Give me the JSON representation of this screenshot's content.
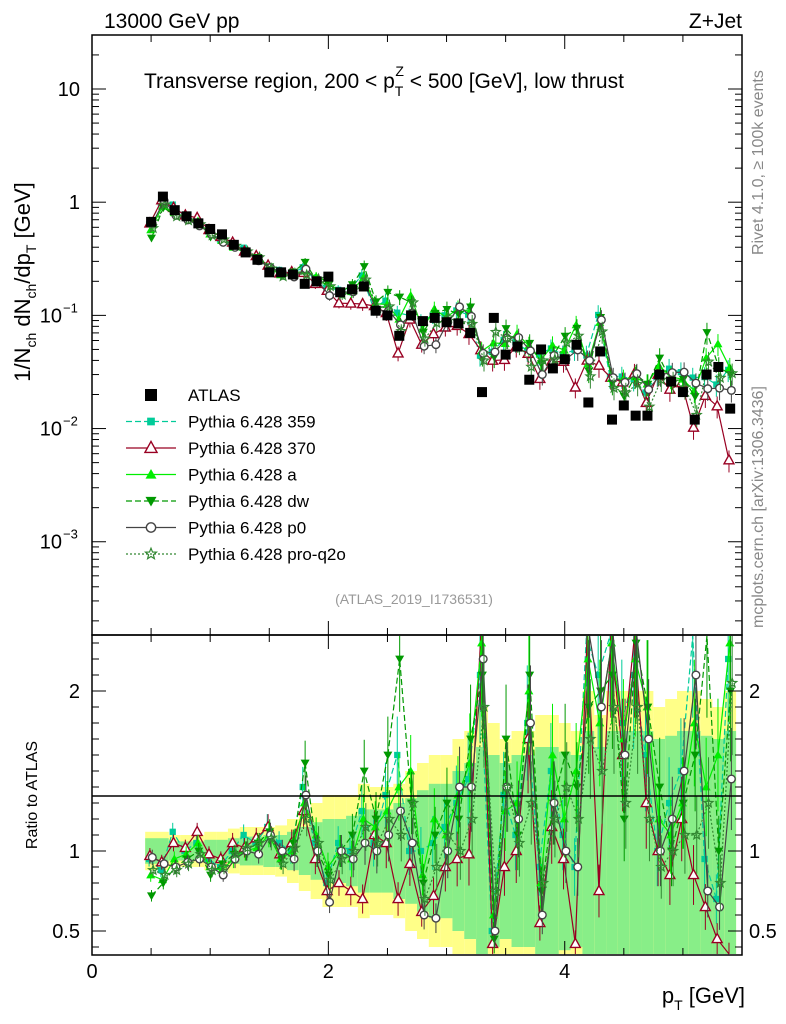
{
  "header": {
    "left": "13000 GeV pp",
    "right": "Z+Jet"
  },
  "side_labels": {
    "rivet": "Rivet 4.1.0, ≥ 100k events",
    "mcplots": "mcplots.cern.ch [arXiv:1306.3436]"
  },
  "reference": "(ATLAS_2019_I1736531)",
  "ratio_ylabel": "Ratio to ATLAS",
  "colors": {
    "data": "#000000",
    "p359": "#00cc99",
    "p370": "#990022",
    "pa": "#00ee00",
    "pdw": "#009900",
    "pp0": "#444444",
    "pq2o": "#338833",
    "band_yellow": "#ffff88",
    "band_green": "#88ee88"
  },
  "chart_data": {
    "type": "scatter",
    "title": "Transverse region, 200 < p_T^Z < 500 [GeV], low thrust",
    "title_parts": {
      "a": "Transverse region, 200 < p",
      "sub": "T",
      "sup": "Z",
      "b": " < 500 [GeV], low thrust"
    },
    "xlabel": "p_T [GeV]",
    "xlabel_parts": {
      "main": "p",
      "sub": "T",
      "unit": " [GeV]"
    },
    "ylabel": "1/N_ch dN_ch/dp_T [GeV]",
    "ylabel_parts": {
      "t1": "1/N",
      "s1": "ch",
      "t2": " dN",
      "s2": "ch",
      "t3": "/dp",
      "s3": "T",
      "t4": " [GeV]"
    },
    "xlim": [
      0,
      5.5
    ],
    "ylim": [
      0.00015,
      30
    ],
    "ylog": true,
    "ratio_ylim": [
      0.35,
      2.35
    ],
    "xticks": [
      0,
      2,
      4
    ],
    "yticks": [
      {
        "v": 10,
        "label": "10"
      },
      {
        "v": 1,
        "label": "1"
      },
      {
        "v": 0.1,
        "base": "10",
        "exp": "−1"
      },
      {
        "v": 0.01,
        "base": "10",
        "exp": "−2"
      },
      {
        "v": 0.001,
        "base": "10",
        "exp": "−3"
      }
    ],
    "ratio_yticks": [
      0.5,
      1,
      2
    ],
    "x": [
      0.5,
      0.6,
      0.7,
      0.8,
      0.9,
      1.0,
      1.1,
      1.2,
      1.3,
      1.4,
      1.5,
      1.6,
      1.7,
      1.8,
      1.9,
      2.0,
      2.1,
      2.2,
      2.3,
      2.4,
      2.5,
      2.6,
      2.7,
      2.8,
      2.9,
      3.0,
      3.1,
      3.2,
      3.3,
      3.4,
      3.5,
      3.6,
      3.7,
      3.8,
      3.9,
      4.0,
      4.1,
      4.2,
      4.3,
      4.4,
      4.5,
      4.6,
      4.7,
      4.8,
      4.9,
      5.0,
      5.1,
      5.2,
      5.3,
      5.4
    ],
    "data_values": [
      0.67,
      1.12,
      0.85,
      0.75,
      0.65,
      0.58,
      0.52,
      0.42,
      0.36,
      0.31,
      0.24,
      0.24,
      0.23,
      0.19,
      0.2,
      0.22,
      0.16,
      0.17,
      0.18,
      0.11,
      0.1,
      0.066,
      0.1,
      0.089,
      0.095,
      0.087,
      0.085,
      0.07,
      0.021,
      0.095,
      0.045,
      0.053,
      0.027,
      0.05,
      0.034,
      0.041,
      0.055,
      0.017,
      0.048,
      0.012,
      0.016,
      0.013,
      0.013,
      0.03,
      0.026,
      0.021,
      0.012,
      0.03,
      0.035,
      0.015
    ],
    "band_yellow": [
      0.12,
      0.12,
      0.1,
      0.1,
      0.1,
      0.12,
      0.12,
      0.14,
      0.15,
      0.15,
      0.15,
      0.16,
      0.2,
      0.25,
      0.3,
      0.35,
      0.35,
      0.35,
      0.42,
      0.4,
      0.4,
      0.42,
      0.5,
      0.55,
      0.6,
      0.6,
      0.7,
      0.75,
      0.9,
      0.8,
      0.7,
      0.75,
      0.75,
      0.85,
      0.85,
      0.8,
      0.75,
      1.0,
      0.85,
      1.0,
      1.0,
      1.0,
      1.0,
      0.9,
      0.95,
      1.0,
      1.0,
      0.95,
      0.9,
      1.0
    ],
    "band_green": [
      0.08,
      0.08,
      0.06,
      0.06,
      0.06,
      0.07,
      0.07,
      0.08,
      0.09,
      0.09,
      0.1,
      0.1,
      0.12,
      0.15,
      0.18,
      0.2,
      0.2,
      0.22,
      0.26,
      0.26,
      0.26,
      0.3,
      0.33,
      0.38,
      0.42,
      0.42,
      0.5,
      0.55,
      0.65,
      0.6,
      0.55,
      0.6,
      0.6,
      0.65,
      0.65,
      0.62,
      0.6,
      0.75,
      0.65,
      0.75,
      0.75,
      0.75,
      0.75,
      0.7,
      0.72,
      0.75,
      0.75,
      0.72,
      0.7,
      0.75
    ],
    "series": [
      {
        "name": "Pythia 6.428 359",
        "color": "#00cc99",
        "marker": "square",
        "dash": "6,3",
        "ratios": [
          0.95,
          0.88,
          1.12,
          1.0,
          1.05,
          0.95,
          0.9,
          1.0,
          1.1,
          1.05,
          1.15,
          1.05,
          1.0,
          1.4,
          1.05,
          0.8,
          1.05,
          1.0,
          1.25,
          1.05,
          1.35,
          1.6,
          1.0,
          1.0,
          1.05,
          1.15,
          1.3,
          1.45,
          2.1,
          0.5,
          1.35,
          1.1,
          1.8,
          0.9,
          1.5,
          1.1,
          0.9,
          2.6,
          2.1,
          2.4,
          1.8,
          2.1,
          1.6,
          1.0,
          1.3,
          1.5,
          2.35,
          0.95,
          0.7,
          2.2
        ],
        "errs": [
          0.05,
          0.05,
          0.05,
          0.05,
          0.05,
          0.05,
          0.05,
          0.06,
          0.06,
          0.06,
          0.07,
          0.07,
          0.08,
          0.09,
          0.1,
          0.1,
          0.1,
          0.12,
          0.13,
          0.14,
          0.15,
          0.15,
          0.15,
          0.15,
          0.16,
          0.17,
          0.18,
          0.2,
          0.2,
          0.2,
          0.2,
          0.2,
          0.2,
          0.2,
          0.2,
          0.2,
          0.2,
          0.22,
          0.22,
          0.22,
          0.22,
          0.22,
          0.22,
          0.22,
          0.22,
          0.22,
          0.22,
          0.22,
          0.22,
          0.22
        ]
      },
      {
        "name": "Pythia 6.428 370",
        "color": "#990022",
        "marker": "triangle-open",
        "dash": "",
        "ratios": [
          0.97,
          0.93,
          1.05,
          1.02,
          1.12,
          0.98,
          0.95,
          1.05,
          1.02,
          1.08,
          1.15,
          0.98,
          1.05,
          1.25,
          0.95,
          0.75,
          0.8,
          0.75,
          0.7,
          1.1,
          1.05,
          0.7,
          0.92,
          0.62,
          0.72,
          0.9,
          0.95,
          0.98,
          2.35,
          0.42,
          0.9,
          1.0,
          1.7,
          0.55,
          1.15,
          0.95,
          0.42,
          2.35,
          0.75,
          2.35,
          1.6,
          2.35,
          1.3,
          1.0,
          0.85,
          1.2,
          0.85,
          0.65,
          0.45,
          0.35
        ],
        "errs": [
          0.05,
          0.05,
          0.05,
          0.05,
          0.05,
          0.05,
          0.05,
          0.06,
          0.06,
          0.06,
          0.07,
          0.07,
          0.08,
          0.09,
          0.1,
          0.1,
          0.1,
          0.12,
          0.13,
          0.14,
          0.15,
          0.15,
          0.15,
          0.15,
          0.16,
          0.17,
          0.18,
          0.2,
          0.2,
          0.2,
          0.2,
          0.2,
          0.2,
          0.2,
          0.2,
          0.2,
          0.2,
          0.22,
          0.22,
          0.22,
          0.22,
          0.22,
          0.22,
          0.22,
          0.22,
          0.22,
          0.22,
          0.22,
          0.22,
          0.22
        ]
      },
      {
        "name": "Pythia 6.428 a",
        "color": "#00ee00",
        "marker": "triangle",
        "dash": "",
        "ratios": [
          0.85,
          0.82,
          0.95,
          0.98,
          1.05,
          0.9,
          0.88,
          0.95,
          1.0,
          1.02,
          1.1,
          0.95,
          1.0,
          1.3,
          1.1,
          0.9,
          1.0,
          0.95,
          1.2,
          1.15,
          1.25,
          1.4,
          1.5,
          0.85,
          1.2,
          1.1,
          1.35,
          1.55,
          2.3,
          0.6,
          1.25,
          1.3,
          2.0,
          0.8,
          1.6,
          1.2,
          1.5,
          2.2,
          1.8,
          2.3,
          1.7,
          2.2,
          1.9,
          1.2,
          1.1,
          1.3,
          1.8,
          1.4,
          1.6,
          2.3
        ],
        "errs": [
          0.05,
          0.05,
          0.05,
          0.05,
          0.05,
          0.05,
          0.05,
          0.06,
          0.06,
          0.06,
          0.07,
          0.07,
          0.08,
          0.09,
          0.1,
          0.1,
          0.1,
          0.12,
          0.13,
          0.14,
          0.15,
          0.15,
          0.15,
          0.15,
          0.16,
          0.17,
          0.18,
          0.2,
          0.2,
          0.2,
          0.2,
          0.2,
          0.2,
          0.2,
          0.2,
          0.2,
          0.2,
          0.22,
          0.22,
          0.22,
          0.22,
          0.22,
          0.22,
          0.22,
          0.22,
          0.22,
          0.22,
          0.22,
          0.22,
          0.22
        ]
      },
      {
        "name": "Pythia 6.428 dw",
        "color": "#009900",
        "marker": "triangle-down",
        "dash": "6,3",
        "ratios": [
          0.72,
          0.8,
          0.9,
          0.95,
          1.0,
          0.85,
          0.92,
          0.98,
          1.0,
          1.05,
          1.12,
          0.95,
          1.05,
          1.55,
          1.0,
          0.85,
          1.0,
          1.1,
          1.5,
          1.2,
          1.6,
          2.2,
          1.3,
          0.8,
          1.1,
          1.3,
          1.2,
          1.7,
          2.1,
          0.45,
          1.7,
          1.1,
          2.1,
          0.75,
          1.3,
          1.6,
          1.4,
          1.9,
          2.0,
          2.1,
          1.2,
          2.3,
          1.9,
          1.4,
          1.0,
          1.3,
          1.6,
          2.35,
          1.0,
          2.0
        ],
        "errs": [
          0.05,
          0.05,
          0.05,
          0.05,
          0.05,
          0.05,
          0.05,
          0.06,
          0.06,
          0.06,
          0.07,
          0.07,
          0.08,
          0.09,
          0.1,
          0.1,
          0.1,
          0.12,
          0.13,
          0.14,
          0.15,
          0.15,
          0.15,
          0.15,
          0.16,
          0.17,
          0.18,
          0.2,
          0.2,
          0.2,
          0.2,
          0.2,
          0.2,
          0.2,
          0.2,
          0.2,
          0.2,
          0.22,
          0.22,
          0.22,
          0.22,
          0.22,
          0.22,
          0.22,
          0.22,
          0.22,
          0.22,
          0.22,
          0.22,
          0.22
        ]
      },
      {
        "name": "Pythia 6.428 p0",
        "color": "#444444",
        "marker": "circle-open",
        "dash": "",
        "ratios": [
          0.96,
          0.92,
          0.9,
          0.93,
          0.95,
          0.9,
          0.85,
          0.95,
          1.0,
          0.98,
          1.1,
          1.0,
          0.95,
          1.35,
          1.0,
          0.68,
          1.0,
          0.95,
          1.05,
          1.0,
          1.1,
          1.25,
          1.05,
          0.6,
          0.58,
          1.0,
          1.4,
          1.4,
          2.2,
          0.5,
          1.4,
          1.2,
          1.8,
          0.6,
          1.3,
          1.0,
          0.9,
          2.35,
          1.9,
          2.35,
          1.6,
          2.35,
          1.7,
          1.0,
          1.2,
          1.5,
          2.1,
          0.75,
          0.65,
          1.45
        ],
        "errs": [
          0.05,
          0.05,
          0.05,
          0.05,
          0.05,
          0.05,
          0.05,
          0.06,
          0.06,
          0.06,
          0.07,
          0.07,
          0.08,
          0.09,
          0.1,
          0.1,
          0.1,
          0.12,
          0.13,
          0.14,
          0.15,
          0.15,
          0.15,
          0.15,
          0.16,
          0.17,
          0.18,
          0.2,
          0.2,
          0.2,
          0.2,
          0.2,
          0.2,
          0.2,
          0.2,
          0.2,
          0.2,
          0.22,
          0.22,
          0.22,
          0.22,
          0.22,
          0.22,
          0.22,
          0.22,
          0.22,
          0.22,
          0.22,
          0.22,
          0.22
        ]
      },
      {
        "name": "Pythia 6.428 pro-q2o",
        "color": "#338833",
        "marker": "star",
        "dash": "2,2",
        "ratios": [
          0.88,
          0.85,
          0.88,
          0.92,
          0.98,
          0.88,
          0.9,
          0.98,
          1.02,
          1.05,
          1.08,
          0.92,
          1.02,
          1.2,
          1.05,
          0.82,
          0.95,
          1.0,
          1.15,
          1.05,
          1.2,
          1.1,
          1.3,
          0.7,
          0.9,
          1.1,
          1.0,
          1.2,
          1.9,
          0.75,
          1.4,
          1.05,
          1.3,
          0.8,
          1.2,
          1.4,
          1.2,
          1.7,
          1.5,
          1.9,
          1.3,
          1.9,
          1.2,
          0.9,
          1.0,
          1.1,
          1.1,
          1.3,
          0.8,
          2.05
        ],
        "errs": [
          0.05,
          0.05,
          0.05,
          0.05,
          0.05,
          0.05,
          0.05,
          0.06,
          0.06,
          0.06,
          0.07,
          0.07,
          0.08,
          0.09,
          0.1,
          0.1,
          0.1,
          0.12,
          0.13,
          0.14,
          0.15,
          0.15,
          0.15,
          0.15,
          0.16,
          0.17,
          0.18,
          0.2,
          0.2,
          0.2,
          0.2,
          0.2,
          0.2,
          0.2,
          0.2,
          0.2,
          0.2,
          0.22,
          0.22,
          0.22,
          0.22,
          0.22,
          0.22,
          0.22,
          0.22,
          0.22,
          0.22,
          0.22,
          0.22,
          0.22
        ]
      }
    ],
    "legend": [
      {
        "label": "ATLAS",
        "color": "#000000",
        "marker": "square-filled"
      },
      {
        "label": "Pythia 6.428 359",
        "color": "#00cc99",
        "marker": "square"
      },
      {
        "label": "Pythia 6.428 370",
        "color": "#990022",
        "marker": "triangle-open"
      },
      {
        "label": "Pythia 6.428 a",
        "color": "#00ee00",
        "marker": "triangle"
      },
      {
        "label": "Pythia 6.428 dw",
        "color": "#009900",
        "marker": "triangle-down"
      },
      {
        "label": "Pythia 6.428 p0",
        "color": "#444444",
        "marker": "circle-open"
      },
      {
        "label": "Pythia 6.428 pro-q2o",
        "color": "#338833",
        "marker": "star"
      }
    ],
    "legend_position": "middle-left"
  }
}
